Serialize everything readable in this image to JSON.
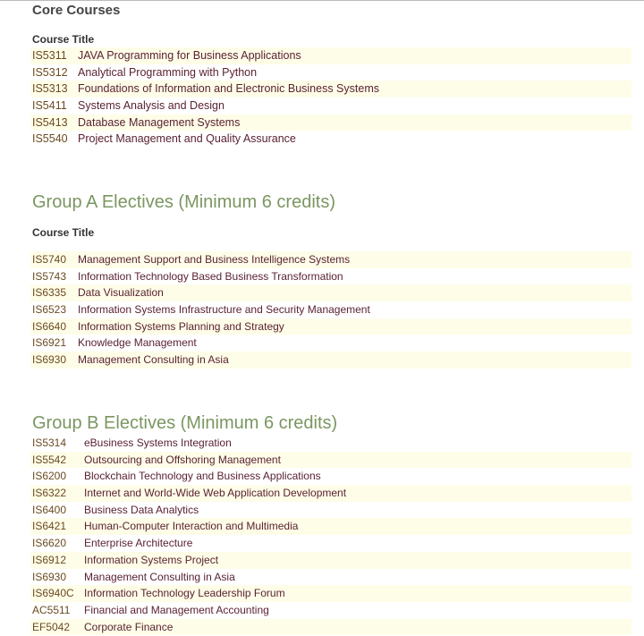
{
  "core": {
    "heading": "Core Courses",
    "column_header": "Course Title",
    "courses": [
      {
        "code": "IS5311",
        "title": "JAVA Programming for Business Applications"
      },
      {
        "code": "IS5312",
        "title": "Analytical Programming with Python"
      },
      {
        "code": "IS5313",
        "title": "Foundations of Information and Electronic Business Systems"
      },
      {
        "code": "IS5411",
        "title": "Systems Analysis and Design"
      },
      {
        "code": "IS5413",
        "title": "Database Management Systems"
      },
      {
        "code": "IS5540",
        "title": "Project Management and Quality Assurance"
      }
    ]
  },
  "group_a": {
    "heading": "Group A Electives (Minimum 6 credits)",
    "column_header": "Course Title",
    "courses": [
      {
        "code": "IS5740",
        "title": "Management Support and Business Intelligence Systems"
      },
      {
        "code": "IS5743",
        "title": "Information Technology Based Business Transformation"
      },
      {
        "code": "IS6335",
        "title": "Data Visualization"
      },
      {
        "code": "IS6523",
        "title": "Information Systems Infrastructure and Security Management"
      },
      {
        "code": "IS6640",
        "title": "Information Systems Planning and Strategy"
      },
      {
        "code": "IS6921",
        "title": "Knowledge Management"
      },
      {
        "code": "IS6930",
        "title": "Management Consulting in Asia"
      }
    ]
  },
  "group_b": {
    "heading": "Group B Electives (Minimum 6 credits)",
    "courses": [
      {
        "code": "IS5314",
        "title": "eBusiness Systems Integration"
      },
      {
        "code": "IS5542",
        "title": "Outsourcing and Offshoring Management"
      },
      {
        "code": "IS6200",
        "title": "Blockchain Technology and Business Applications"
      },
      {
        "code": "IS6322",
        "title": "Internet and World-Wide Web Application Development"
      },
      {
        "code": "IS6400",
        "title": "Business Data Analytics"
      },
      {
        "code": "IS6421",
        "title": "Human-Computer Interaction and Multimedia"
      },
      {
        "code": "IS6620",
        "title": "Enterprise Architecture"
      },
      {
        "code": "IS6912",
        "title": "Information Systems Project"
      },
      {
        "code": "IS6930",
        "title": "Management Consulting in Asia"
      },
      {
        "code": "IS6940C",
        "title": "Information Technology Leadership Forum"
      },
      {
        "code": "AC5511",
        "title": "Financial and Management Accounting"
      },
      {
        "code": "EF5042",
        "title": "Corporate Finance"
      }
    ]
  }
}
